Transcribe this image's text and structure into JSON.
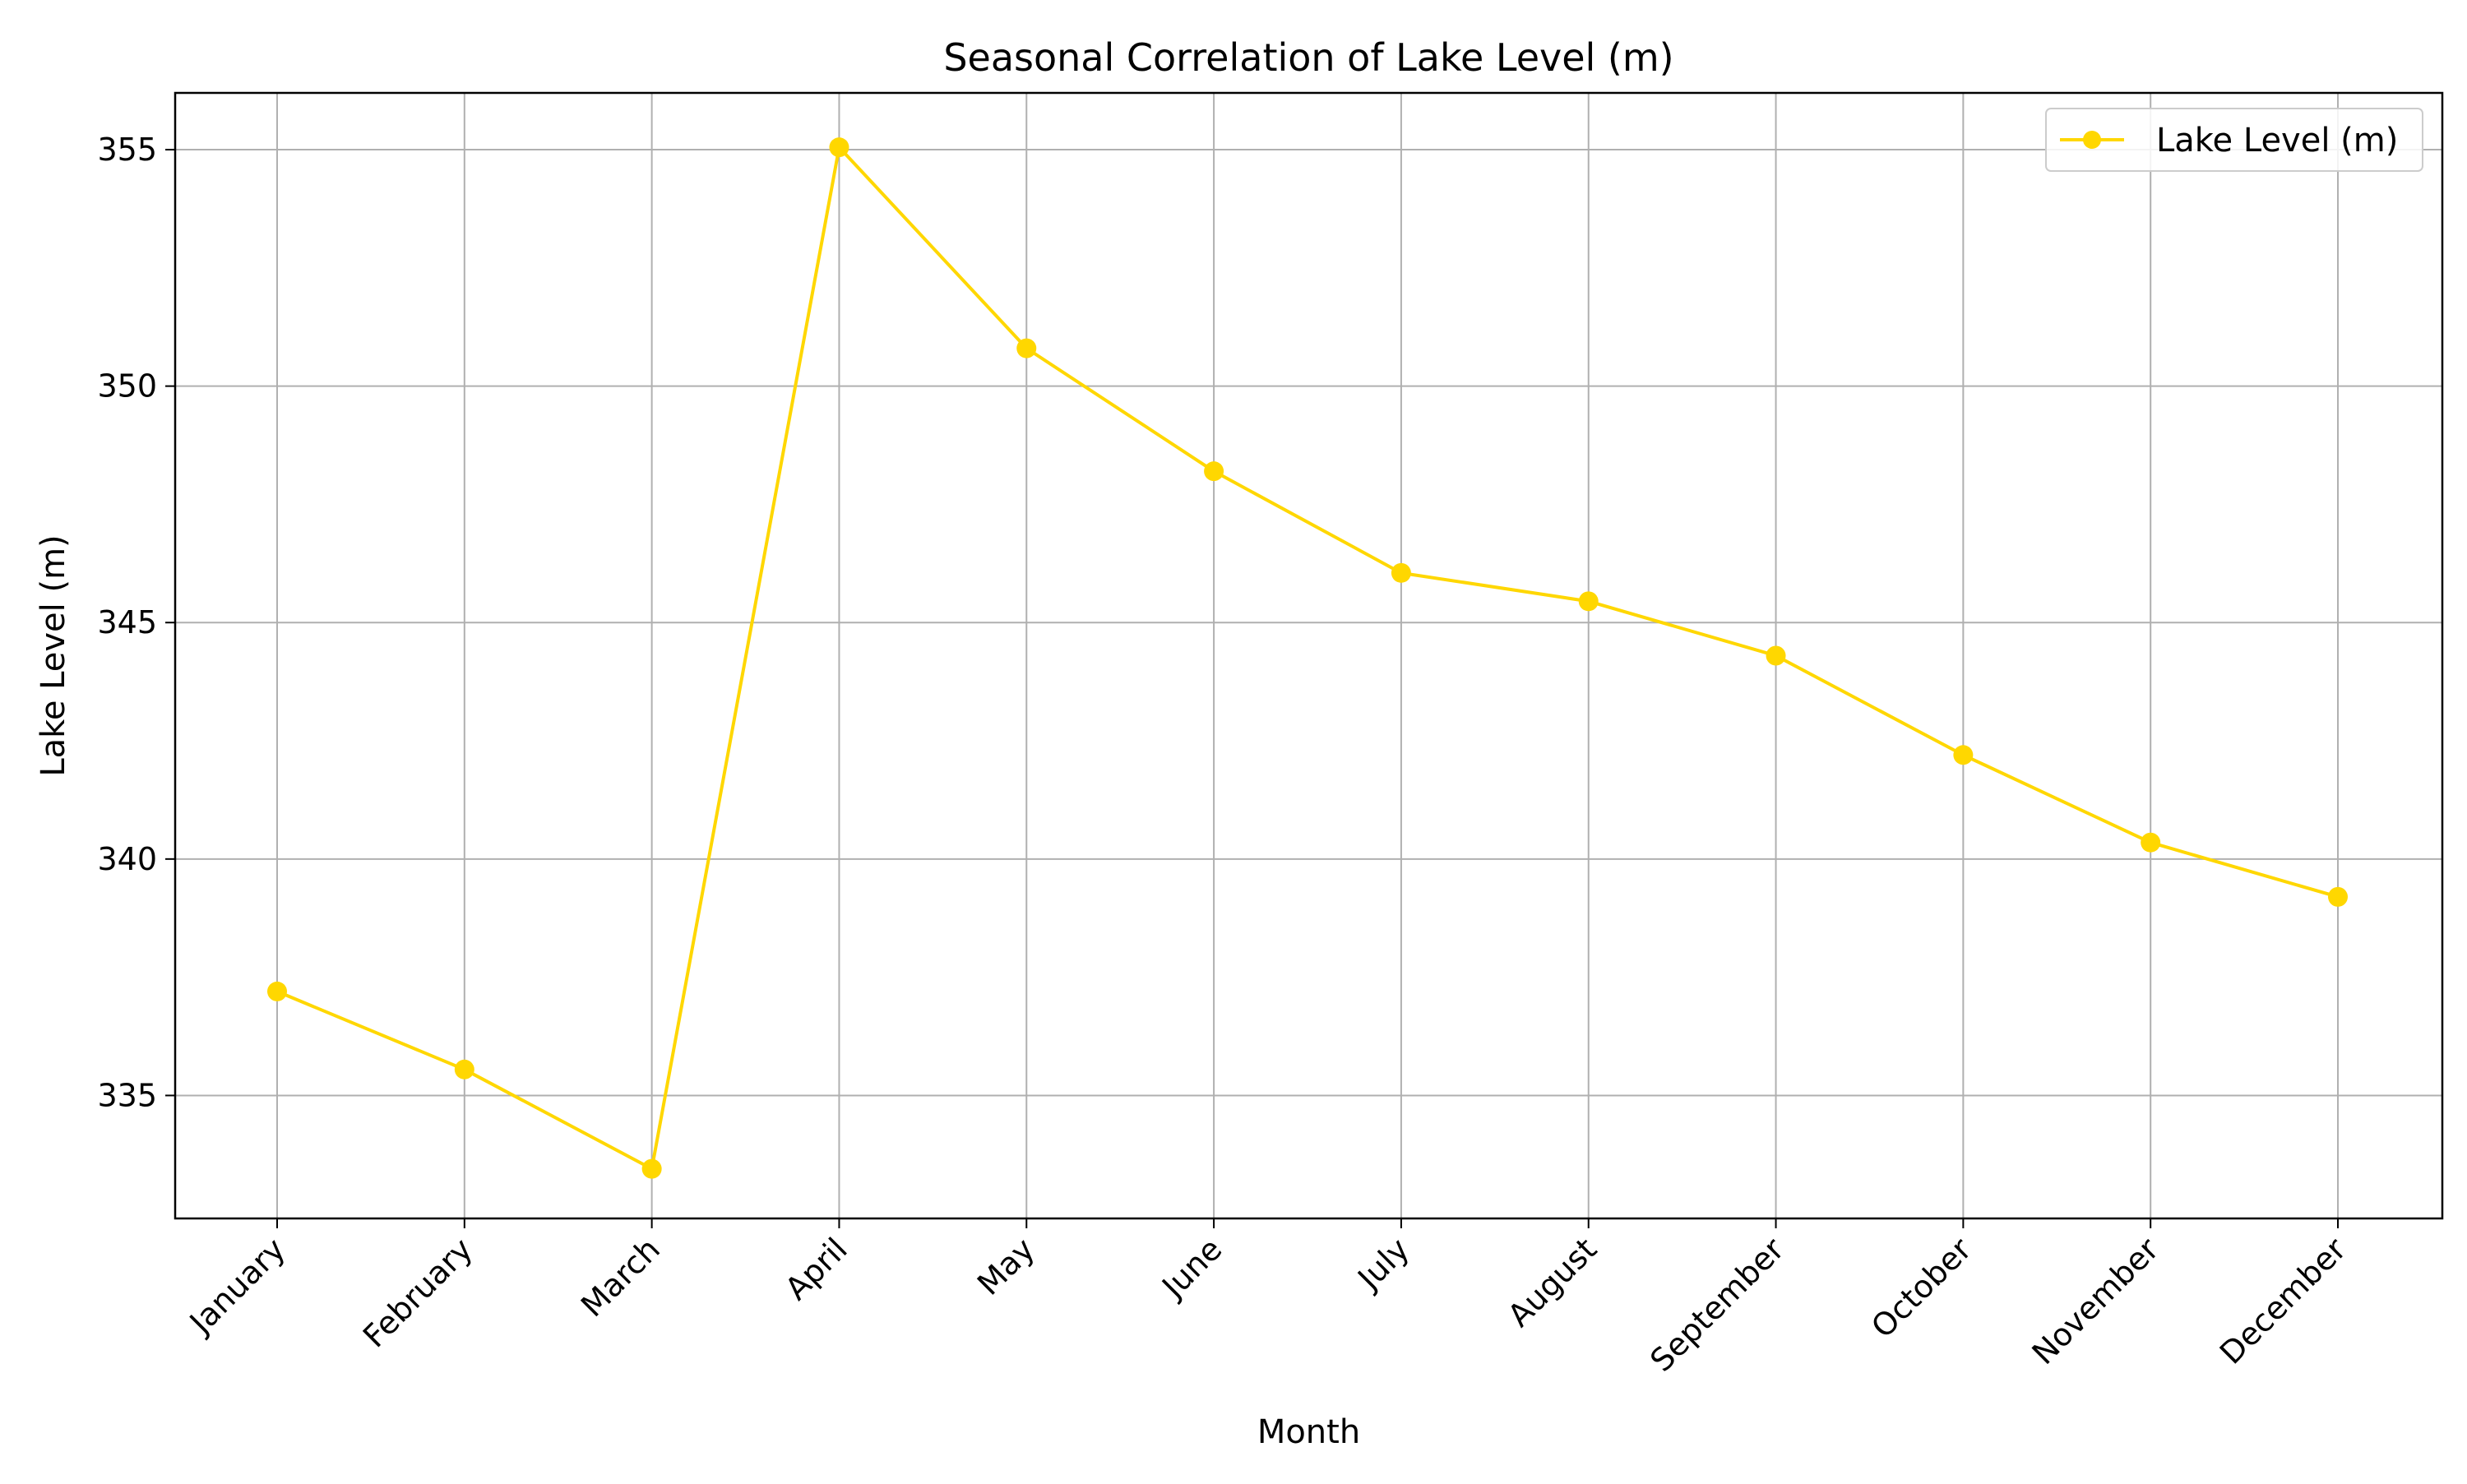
{
  "chart_data": {
    "type": "line",
    "title": "Seasonal Correlation of Lake Level (m)",
    "xlabel": "Month",
    "ylabel": "Lake Level (m)",
    "categories": [
      "January",
      "February",
      "March",
      "April",
      "May",
      "June",
      "July",
      "August",
      "September",
      "October",
      "November",
      "December"
    ],
    "series": [
      {
        "name": "Lake Level (m)",
        "color": "#FFD700",
        "marker": "circle",
        "values": [
          337.2,
          335.55,
          333.45,
          355.05,
          350.8,
          348.2,
          346.05,
          345.45,
          344.3,
          342.2,
          340.35,
          339.2
        ]
      }
    ],
    "yticks": [
      335,
      340,
      345,
      350,
      355
    ],
    "ylim": [
      332.4,
      356.2
    ],
    "grid": true,
    "grid_color": "#b0b0b0",
    "legend_position": "top-right"
  }
}
